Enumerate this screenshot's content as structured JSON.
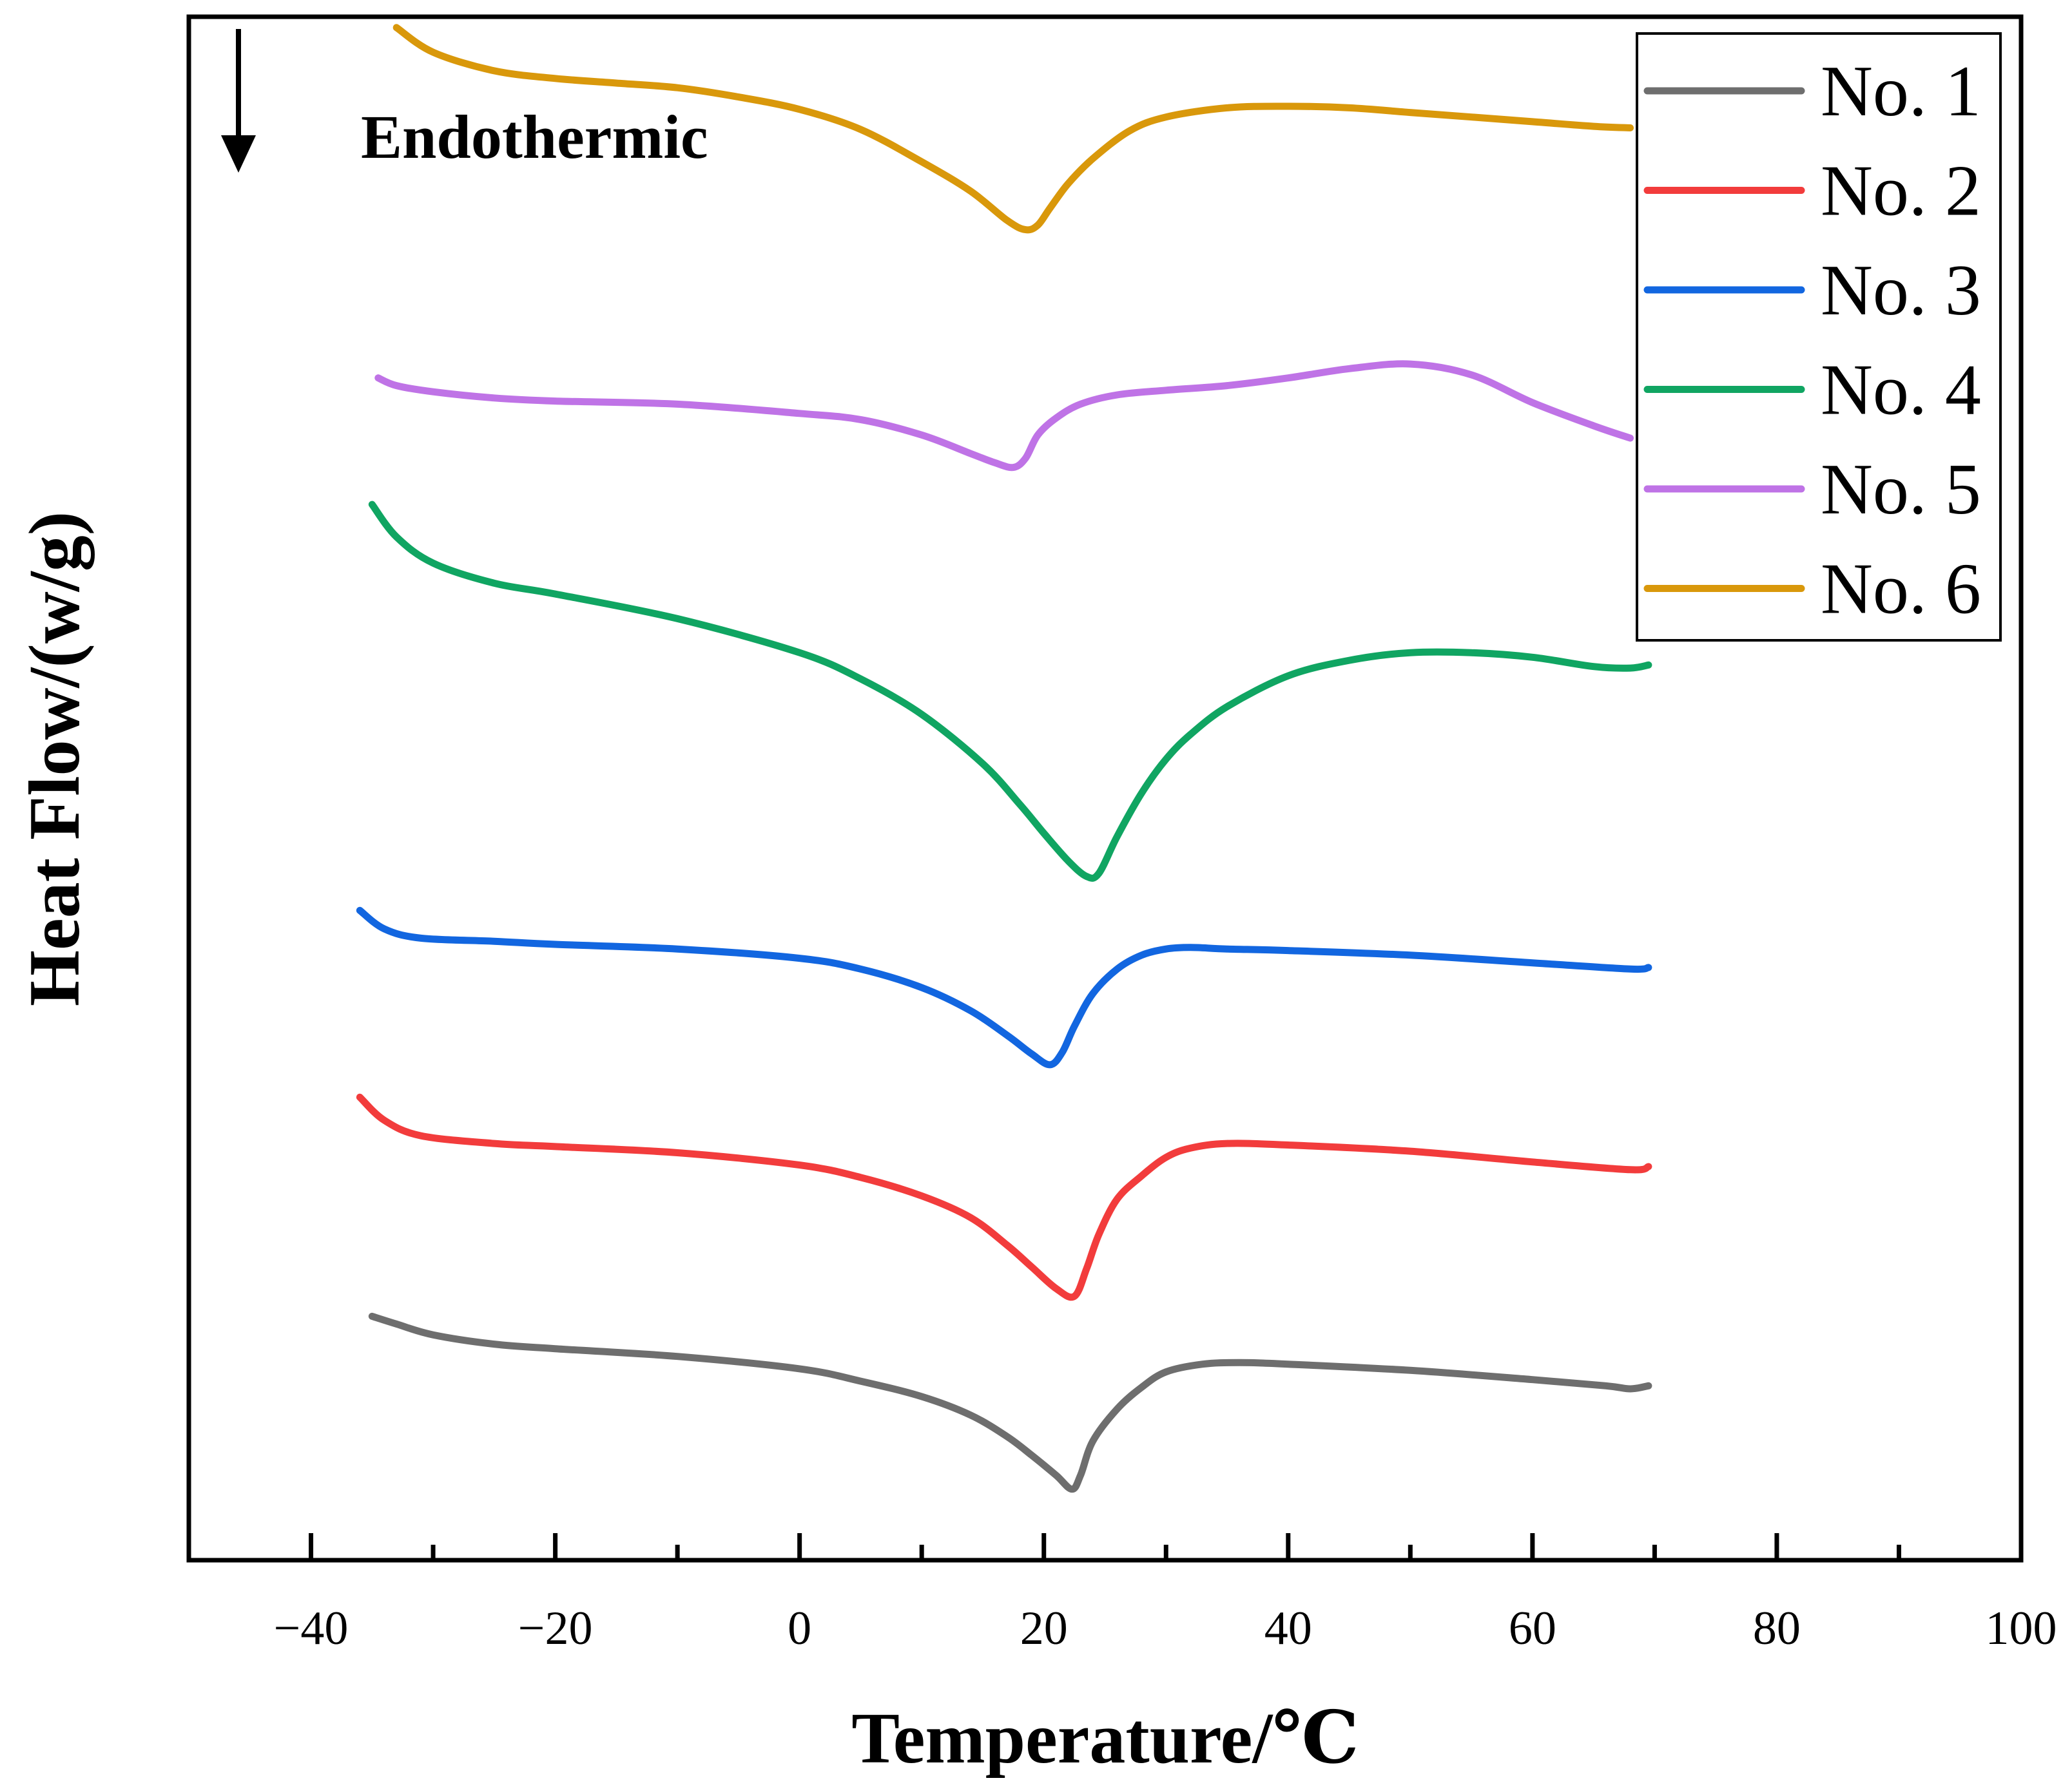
{
  "chart_data": {
    "type": "line",
    "title": "",
    "xlabel": "Temperature/℃",
    "ylabel": "Heat Flow/(w/g)",
    "xlim": [
      -50,
      100
    ],
    "ylim": [
      0,
      100
    ],
    "x_ticks": [
      -40,
      -20,
      0,
      20,
      40,
      60,
      80,
      100
    ],
    "x_tick_labels": [
      "−40",
      "−20",
      "0",
      "20",
      "40",
      "60",
      "80",
      "100"
    ],
    "y_ticks": [],
    "grid": false,
    "legend_position": "top-right",
    "annotation": {
      "text": "Endothermic",
      "arrow": "down"
    },
    "series": [
      {
        "name": "No. 1",
        "color": "#6e6e6e",
        "x": [
          -35,
          -33,
          -30,
          -25,
          -20,
          -10,
          0,
          5,
          10,
          14,
          17,
          19,
          21,
          22.3,
          23,
          24,
          26,
          28,
          30,
          33,
          36,
          40,
          50,
          60,
          66,
          68,
          69.5
        ],
        "y": [
          15.8,
          15.3,
          14.6,
          14.0,
          13.7,
          13.2,
          12.4,
          11.6,
          10.6,
          9.4,
          8.0,
          6.8,
          5.5,
          4.6,
          5.5,
          7.7,
          9.8,
          11.2,
          12.2,
          12.7,
          12.8,
          12.7,
          12.3,
          11.7,
          11.3,
          11.1,
          11.3
        ]
      },
      {
        "name": "No. 2",
        "color": "#f23c3c",
        "x": [
          -36,
          -34,
          -31,
          -25,
          -20,
          -10,
          0,
          5,
          10,
          14,
          17,
          19,
          21,
          22.5,
          23.5,
          24.5,
          26,
          28,
          30,
          32,
          35,
          40,
          50,
          60,
          68,
          69.5
        ],
        "y": [
          30.0,
          28.5,
          27.5,
          27.0,
          26.8,
          26.4,
          25.6,
          24.8,
          23.6,
          22.2,
          20.4,
          19.0,
          17.6,
          17.1,
          18.9,
          21.1,
          23.4,
          24.9,
          26.1,
          26.7,
          27.0,
          26.9,
          26.5,
          25.8,
          25.3,
          25.5
        ]
      },
      {
        "name": "No. 3",
        "color": "#1266e0",
        "x": [
          -36,
          -34,
          -31,
          -25,
          -20,
          -10,
          0,
          5,
          10,
          14,
          17,
          19,
          20.5,
          21.5,
          22.5,
          24,
          26,
          28,
          30,
          32,
          35,
          40,
          50,
          60,
          68,
          69.5
        ],
        "y": [
          42.1,
          40.9,
          40.3,
          40.1,
          39.9,
          39.6,
          39.0,
          38.3,
          37.1,
          35.6,
          34.0,
          32.8,
          32.1,
          32.9,
          34.6,
          36.7,
          38.3,
          39.2,
          39.6,
          39.7,
          39.6,
          39.5,
          39.2,
          38.7,
          38.3,
          38.4
        ]
      },
      {
        "name": "No. 4",
        "color": "#10a562",
        "x": [
          -35,
          -33,
          -30,
          -25,
          -20,
          -10,
          0,
          5,
          10,
          15,
          18,
          20,
          22,
          23.5,
          24.5,
          26,
          28,
          30,
          32,
          35,
          40,
          45,
          50,
          55,
          60,
          65,
          68,
          69.5
        ],
        "y": [
          68.4,
          66.3,
          64.6,
          63.3,
          62.6,
          61.0,
          58.8,
          57.1,
          54.8,
          51.6,
          49.0,
          47.1,
          45.3,
          44.3,
          44.5,
          46.9,
          49.7,
          51.9,
          53.5,
          55.3,
          57.3,
          58.3,
          58.8,
          58.8,
          58.5,
          57.9,
          57.8,
          58.0
        ]
      },
      {
        "name": "No. 5",
        "color": "#bf73e6",
        "x": [
          -34.5,
          -33,
          -30,
          -25,
          -20,
          -10,
          0,
          5,
          10,
          14,
          16,
          17.5,
          18.5,
          19.5,
          21,
          23,
          26,
          30,
          35,
          40,
          45,
          50,
          55,
          60,
          65,
          68
        ],
        "y": [
          76.6,
          76.1,
          75.7,
          75.3,
          75.1,
          74.9,
          74.3,
          73.9,
          72.9,
          71.7,
          71.1,
          70.8,
          71.4,
          72.9,
          74.0,
          74.9,
          75.5,
          75.8,
          76.1,
          76.6,
          77.2,
          77.5,
          76.8,
          75.0,
          73.5,
          72.7
        ]
      },
      {
        "name": "No. 6",
        "color": "#d9980b",
        "x": [
          -33,
          -30,
          -25,
          -20,
          -15,
          -10,
          -5,
          0,
          5,
          10,
          14,
          17,
          18.5,
          19.5,
          20.5,
          22,
          24,
          27,
          30,
          35,
          40,
          45,
          50,
          55,
          60,
          65,
          68
        ],
        "y": [
          99.3,
          97.7,
          96.5,
          96.0,
          95.7,
          95.4,
          94.8,
          94.0,
          92.7,
          90.6,
          88.7,
          86.8,
          86.2,
          86.5,
          87.6,
          89.2,
          90.8,
          92.6,
          93.5,
          94.1,
          94.2,
          94.1,
          93.8,
          93.5,
          93.2,
          92.9,
          92.8
        ]
      }
    ]
  }
}
